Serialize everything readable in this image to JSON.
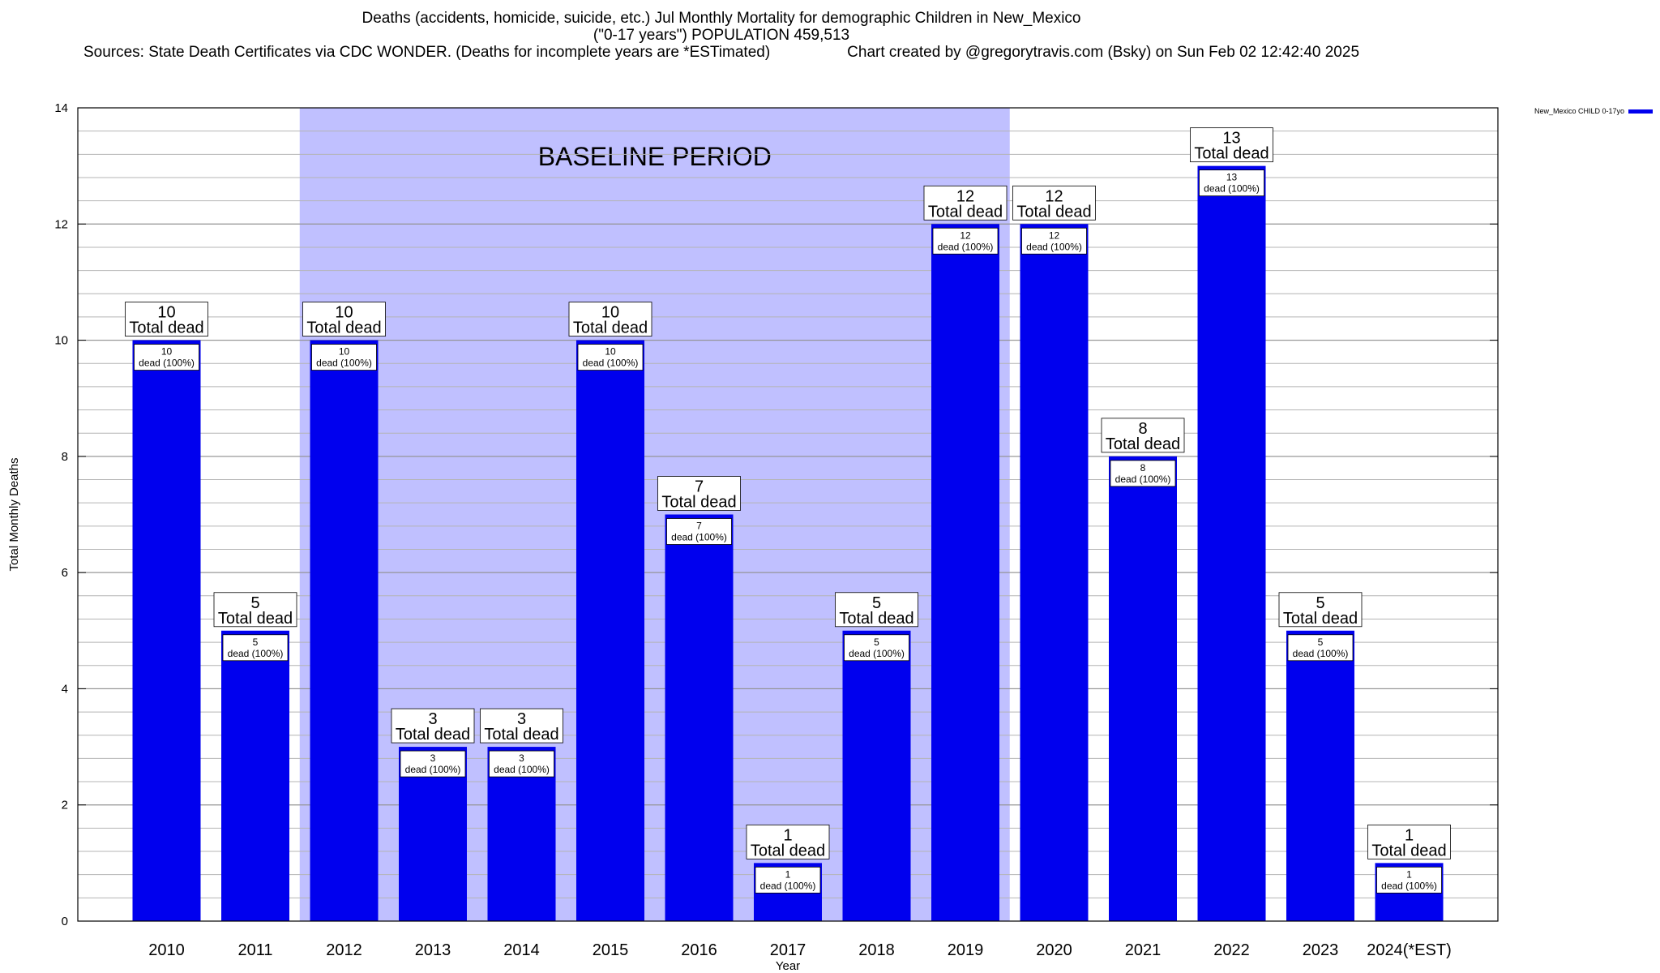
{
  "header": {
    "title_line1": "Deaths (accidents, homicide, suicide, etc.) Jul Monthly Mortality for demographic Children in New_Mexico",
    "title_line2": "(\"0-17 years\") POPULATION 459,513",
    "sources": "Sources: State Death Certificates via CDC WONDER. (Deaths for incomplete years are *ESTimated)",
    "credit": "Chart created by @gregorytravis.com (Bsky) on Sun Feb 02 12:42:40 2025"
  },
  "chart_data": {
    "type": "bar",
    "xlabel": "Year",
    "ylabel": "Total Monthly Deaths",
    "ylim": [
      0,
      14
    ],
    "y_ticks": [
      0,
      2,
      4,
      6,
      8,
      10,
      12,
      14
    ],
    "grid": true,
    "legend_position": "top-right",
    "categories": [
      "2010",
      "2011",
      "2012",
      "2013",
      "2014",
      "2015",
      "2016",
      "2017",
      "2018",
      "2019",
      "2020",
      "2021",
      "2022",
      "2023",
      "2024(*EST)"
    ],
    "series": [
      {
        "name": "New_Mexico CHILD 0-17yo",
        "color": "#0000ee",
        "values": [
          10,
          5,
          10,
          3,
          3,
          10,
          7,
          1,
          5,
          12,
          12,
          8,
          13,
          5,
          1
        ]
      }
    ],
    "total_label_suffix": "Total dead",
    "inner_label_suffix": "dead (100%)",
    "annotation": {
      "text": "BASELINE PERIOD",
      "start_category": "2012",
      "end_category": "2019",
      "color": "#c0c0ff"
    }
  }
}
